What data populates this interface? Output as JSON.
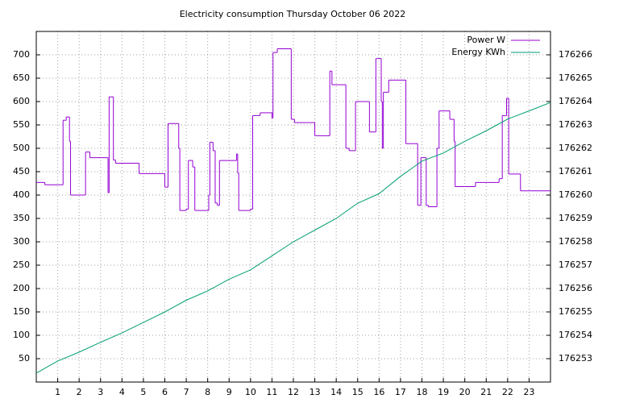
{
  "chart_data": {
    "type": "line",
    "title": "Electricity consumption Thursday October 06 2022",
    "xlim": [
      0,
      24
    ],
    "xticks": [
      1,
      2,
      3,
      4,
      5,
      6,
      7,
      8,
      9,
      10,
      11,
      12,
      13,
      14,
      15,
      16,
      17,
      18,
      19,
      20,
      21,
      22,
      23
    ],
    "ylim": [
      0,
      750
    ],
    "yticks": [
      50,
      100,
      150,
      200,
      250,
      300,
      350,
      400,
      450,
      500,
      550,
      600,
      650,
      700
    ],
    "y2lim": [
      176252,
      176267
    ],
    "y2ticks": [
      176253,
      176254,
      176255,
      176256,
      176257,
      176258,
      176259,
      176260,
      176261,
      176262,
      176263,
      176264,
      176265,
      176266
    ],
    "grid": true,
    "legend": "top-right",
    "series": [
      {
        "name": "Power W",
        "color": "#9400d3",
        "draw": "steps",
        "x": [
          0,
          0.4,
          1.25,
          1.4,
          1.55,
          1.6,
          2.3,
          2.5,
          3.3,
          3.35,
          3.4,
          3.6,
          3.7,
          4.8,
          6.0,
          6.15,
          6.65,
          6.7,
          7.0,
          7.1,
          7.3,
          7.4,
          8.05,
          8.1,
          8.25,
          8.35,
          8.45,
          8.55,
          9.35,
          9.4,
          9.45,
          10.0,
          10.1,
          10.45,
          11.0,
          11.05,
          11.25,
          11.9,
          12.05,
          13.0,
          13.7,
          13.8,
          14.45,
          14.6,
          14.9,
          15.55,
          15.85,
          16.1,
          16.15,
          16.2,
          16.45,
          17.25,
          17.8,
          17.95,
          18.2,
          18.3,
          18.7,
          18.8,
          19.3,
          19.5,
          19.55,
          20.5,
          21.6,
          21.75,
          21.95,
          22.05,
          22.6,
          24
        ],
        "values": [
          427,
          422,
          560,
          567,
          515,
          400,
          492,
          480,
          480,
          405,
          610,
          475,
          468,
          446,
          417,
          553,
          500,
          367,
          370,
          474,
          460,
          367,
          400,
          513,
          495,
          383,
          378,
          474,
          488,
          447,
          367,
          370,
          570,
          576,
          565,
          705,
          713,
          562,
          555,
          527,
          665,
          636,
          500,
          495,
          600,
          535,
          692,
          600,
          500,
          620,
          646,
          510,
          378,
          480,
          378,
          375,
          500,
          580,
          562,
          515,
          418,
          427,
          435,
          570,
          607,
          445,
          409,
          409
        ]
      },
      {
        "name": "Energy KWh",
        "color": "#009e73",
        "axis": "y2",
        "x": [
          0,
          1,
          2,
          3,
          4,
          5,
          6,
          7,
          8,
          9,
          10,
          11,
          12,
          13,
          14,
          15,
          16,
          17,
          18,
          19,
          20,
          21,
          22,
          23,
          24
        ],
        "values": [
          176252.38,
          176252.9,
          176253.28,
          176253.7,
          176254.1,
          176254.55,
          176255.0,
          176255.5,
          176255.9,
          176256.4,
          176256.8,
          176257.4,
          176258.0,
          176258.5,
          176259.0,
          176259.65,
          176260.06,
          176260.8,
          176261.45,
          176261.8,
          176262.3,
          176262.75,
          176263.25,
          176263.6,
          176263.96
        ]
      }
    ]
  }
}
